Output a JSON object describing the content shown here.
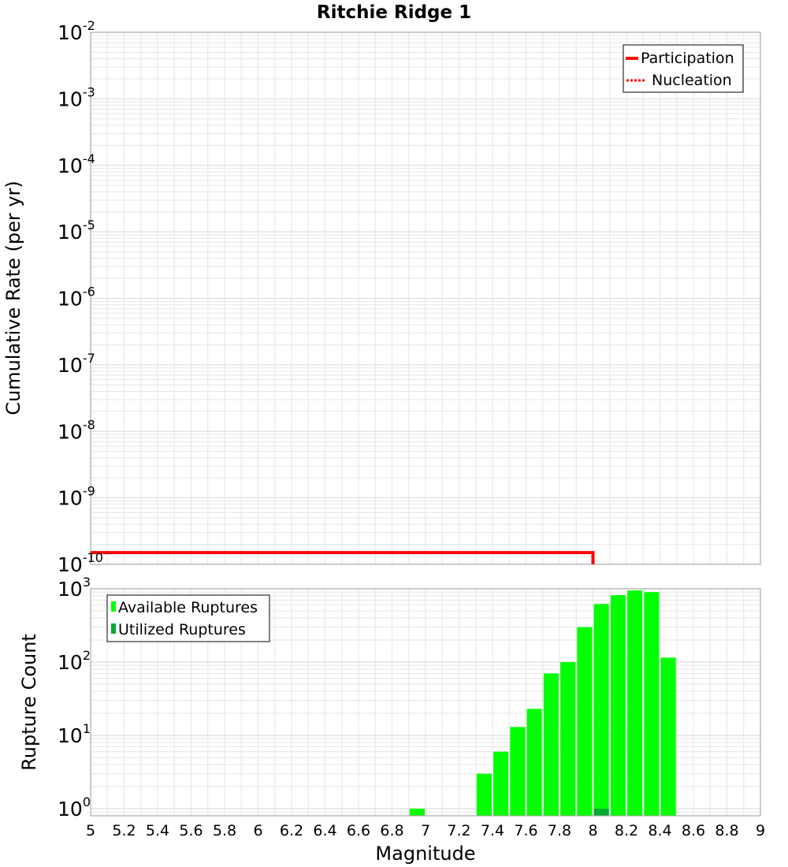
{
  "colors": {
    "participation": "#ff0000",
    "available": "#00ff00",
    "utilized": "#00aa33",
    "grid": "#e6e6e6",
    "frame": "#999999"
  },
  "chart_data": [
    {
      "type": "line",
      "title": "Ritchie Ridge 1",
      "ylabel": "Cumulative Rate (per yr)",
      "yscale": "log",
      "ylim_exponents": [
        -10,
        -2
      ],
      "xlim": [
        5,
        9
      ],
      "y_tick_base": "10",
      "y_tick_exponents": [
        "-2",
        "-3",
        "-4",
        "-5",
        "-6",
        "-7",
        "-8",
        "-9",
        "-10"
      ],
      "legend": {
        "position": "top-right",
        "entries": [
          "Participation",
          "Nucleation"
        ]
      },
      "series": [
        {
          "name": "Participation",
          "style": "solid",
          "points": [
            [
              5.0,
              1.5e-10
            ],
            [
              8.0,
              1.5e-10
            ],
            [
              8.0,
              1e-10
            ]
          ]
        },
        {
          "name": "Nucleation",
          "style": "dotted",
          "points": []
        }
      ]
    },
    {
      "type": "bar",
      "ylabel": "Rupture Count",
      "xlabel": "Magnitude",
      "yscale": "log",
      "ylim": [
        0.8,
        1000
      ],
      "xlim": [
        5,
        9
      ],
      "bar_width": 0.09,
      "x_ticks": [
        "5",
        "5.2",
        "5.4",
        "5.6",
        "5.8",
        "6",
        "6.2",
        "6.4",
        "6.6",
        "6.8",
        "7",
        "7.2",
        "7.4",
        "7.6",
        "7.8",
        "8",
        "8.2",
        "8.4",
        "8.6",
        "8.8",
        "9"
      ],
      "y_tick_base": "10",
      "y_tick_exponents": [
        "3",
        "2",
        "1",
        "0"
      ],
      "legend": {
        "position": "top-left",
        "entries": [
          "Available Ruptures",
          "Utilized Ruptures"
        ]
      },
      "series": [
        {
          "name": "Available Ruptures",
          "x": [
            6.95,
            7.35,
            7.45,
            7.55,
            7.65,
            7.75,
            7.85,
            7.95,
            8.05,
            8.15,
            8.25,
            8.35,
            8.45
          ],
          "values": [
            1,
            3,
            6,
            13,
            23,
            70,
            100,
            300,
            620,
            820,
            950,
            900,
            115
          ]
        },
        {
          "name": "Utilized Ruptures",
          "x": [
            8.05
          ],
          "values": [
            1
          ]
        }
      ]
    }
  ]
}
